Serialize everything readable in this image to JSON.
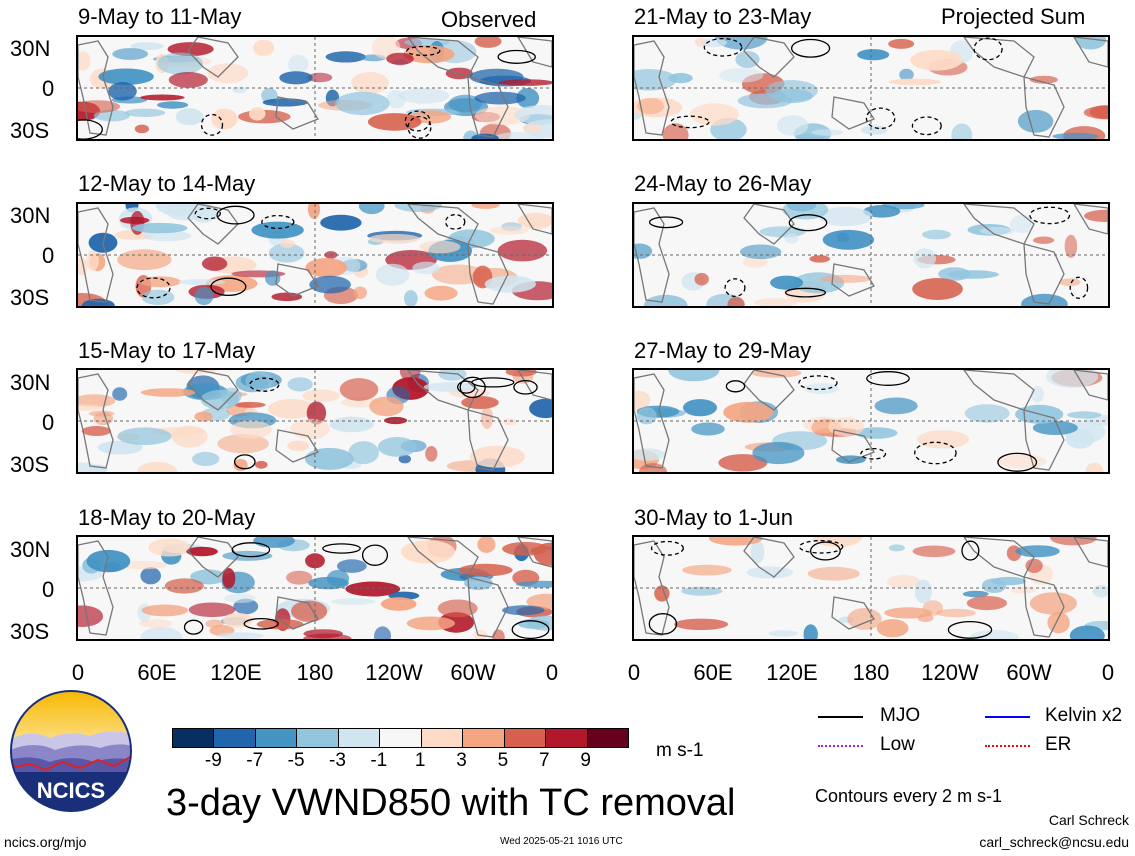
{
  "corner_labels": {
    "left": "Observed",
    "right": "Projected Sum"
  },
  "panels_left": [
    {
      "title": "9-May to 11-May"
    },
    {
      "title": "12-May to 14-May"
    },
    {
      "title": "15-May to 17-May"
    },
    {
      "title": "18-May to 20-May"
    }
  ],
  "panels_right": [
    {
      "title": "21-May to 23-May"
    },
    {
      "title": "24-May to 26-May"
    },
    {
      "title": "27-May to 29-May"
    },
    {
      "title": "30-May to 1-Jun"
    }
  ],
  "y_labels": [
    "30N",
    "0",
    "30S"
  ],
  "x_labels": [
    "0",
    "60E",
    "120E",
    "180",
    "120W",
    "60W",
    "0"
  ],
  "colorbar": {
    "colors": [
      "#053061",
      "#2166ac",
      "#4393c3",
      "#92c5de",
      "#d1e5f0",
      "#f7f7f7",
      "#fddbc7",
      "#f4a582",
      "#d6604d",
      "#b2182b",
      "#67001f"
    ],
    "ticks": [
      "-9",
      "-7",
      "-5",
      "-3",
      "-1",
      "1",
      "3",
      "5",
      "7",
      "9"
    ],
    "units": "m s-1"
  },
  "legend": {
    "items": [
      {
        "label": "MJO",
        "color": "#000000"
      },
      {
        "label": "Kelvin x2",
        "color": "#0000ff"
      },
      {
        "label": "Low",
        "color": "#a020f0"
      },
      {
        "label": "ER",
        "color": "#ff0000"
      }
    ],
    "contours_note": "Contours every 2 m s-1"
  },
  "main_title": "3-day VWND850 with TC removal",
  "logo_text": "NCICS",
  "footer": {
    "left": "ncics.org/mjo",
    "center": "Wed 2025-05-21 1016 UTC",
    "author": "Carl Schreck",
    "email": "carl_schreck@ncsu.edu"
  }
}
